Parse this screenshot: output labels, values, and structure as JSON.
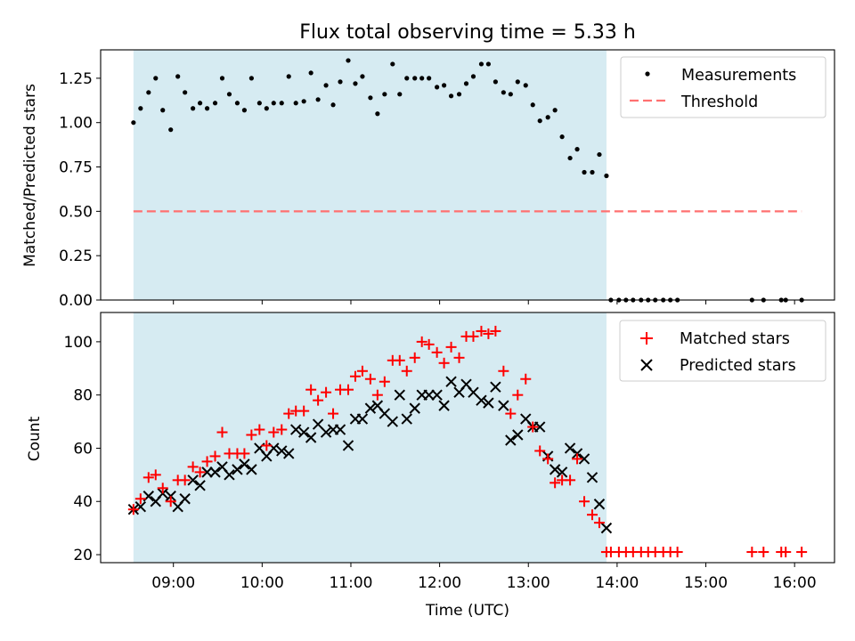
{
  "chart_data": [
    {
      "type": "scatter",
      "title": "Flux total observing time = 5.33 h",
      "xlabel": "",
      "ylabel": "Matched/Predicted stars",
      "ylim": [
        0,
        1.41
      ],
      "xlim": [
        8.18,
        16.45
      ],
      "yticks": [
        0,
        0.25,
        0.5,
        0.75,
        1.0,
        1.25
      ],
      "ytick_labels": [
        "0.00",
        "0.25",
        "0.50",
        "0.75",
        "1.00",
        "1.25"
      ],
      "observing_window": [
        8.55,
        13.88
      ],
      "threshold": {
        "value": 0.5,
        "x_range": [
          8.55,
          16.08
        ]
      },
      "legend": {
        "position": "top-right",
        "entries": [
          "Measurements",
          "Threshold"
        ]
      },
      "series": [
        {
          "name": "Measurements",
          "x": [
            8.55,
            8.63,
            8.72,
            8.8,
            8.88,
            8.97,
            9.05,
            9.13,
            9.22,
            9.3,
            9.38,
            9.47,
            9.55,
            9.63,
            9.72,
            9.8,
            9.88,
            9.97,
            10.05,
            10.13,
            10.22,
            10.3,
            10.38,
            10.47,
            10.55,
            10.63,
            10.72,
            10.8,
            10.88,
            10.97,
            11.05,
            11.13,
            11.22,
            11.3,
            11.38,
            11.47,
            11.55,
            11.63,
            11.72,
            11.8,
            11.88,
            11.97,
            12.05,
            12.13,
            12.22,
            12.3,
            12.38,
            12.47,
            12.55,
            12.63,
            12.72,
            12.8,
            12.88,
            12.97,
            13.05,
            13.13,
            13.22,
            13.3,
            13.38,
            13.47,
            13.55,
            13.63,
            13.72,
            13.8,
            13.88,
            13.93,
            14.02,
            14.1,
            14.18,
            14.27,
            14.35,
            14.43,
            14.52,
            14.6,
            14.68,
            15.52,
            15.65,
            15.85,
            15.9,
            16.08
          ],
          "values": [
            1.0,
            1.08,
            1.17,
            1.25,
            1.07,
            0.96,
            1.26,
            1.17,
            1.08,
            1.11,
            1.08,
            1.11,
            1.25,
            1.16,
            1.11,
            1.07,
            1.25,
            1.11,
            1.08,
            1.11,
            1.11,
            1.26,
            1.11,
            1.12,
            1.28,
            1.13,
            1.21,
            1.1,
            1.23,
            1.35,
            1.22,
            1.26,
            1.14,
            1.05,
            1.16,
            1.33,
            1.16,
            1.25,
            1.25,
            1.25,
            1.25,
            1.2,
            1.21,
            1.15,
            1.16,
            1.22,
            1.26,
            1.33,
            1.33,
            1.23,
            1.17,
            1.16,
            1.23,
            1.21,
            1.1,
            1.01,
            1.03,
            1.07,
            0.92,
            0.8,
            0.85,
            0.72,
            0.72,
            0.82,
            0.7,
            0,
            0,
            0,
            0,
            0,
            0,
            0,
            0,
            0,
            0,
            0,
            0,
            0,
            0,
            0
          ]
        }
      ]
    },
    {
      "type": "scatter",
      "title": "",
      "xlabel": "Time (UTC)",
      "ylabel": "Count",
      "ylim": [
        17,
        111
      ],
      "xlim": [
        8.18,
        16.45
      ],
      "yticks": [
        20,
        40,
        60,
        80,
        100
      ],
      "ytick_labels": [
        "20",
        "40",
        "60",
        "80",
        "100"
      ],
      "xticks": [
        9,
        10,
        11,
        12,
        13,
        14,
        15,
        16
      ],
      "xtick_labels": [
        "09:00",
        "10:00",
        "11:00",
        "12:00",
        "13:00",
        "14:00",
        "15:00",
        "16:00"
      ],
      "observing_window": [
        8.55,
        13.88
      ],
      "legend": {
        "position": "top-right",
        "entries": [
          "Matched stars",
          "Predicted stars"
        ]
      },
      "series": [
        {
          "name": "Matched stars",
          "x": [
            8.55,
            8.63,
            8.72,
            8.8,
            8.88,
            8.97,
            9.05,
            9.13,
            9.22,
            9.3,
            9.38,
            9.47,
            9.55,
            9.63,
            9.72,
            9.8,
            9.88,
            9.97,
            10.05,
            10.13,
            10.22,
            10.3,
            10.38,
            10.47,
            10.55,
            10.63,
            10.72,
            10.8,
            10.88,
            10.97,
            11.05,
            11.13,
            11.22,
            11.3,
            11.38,
            11.47,
            11.55,
            11.63,
            11.72,
            11.8,
            11.88,
            11.97,
            12.05,
            12.13,
            12.22,
            12.3,
            12.38,
            12.47,
            12.55,
            12.63,
            12.72,
            12.8,
            12.88,
            12.97,
            13.05,
            13.13,
            13.22,
            13.3,
            13.38,
            13.47,
            13.55,
            13.63,
            13.72,
            13.8,
            13.88,
            13.93,
            14.02,
            14.1,
            14.18,
            14.27,
            14.35,
            14.43,
            14.52,
            14.6,
            14.68,
            15.52,
            15.65,
            15.85,
            15.9,
            16.08
          ],
          "values": [
            37,
            41,
            49,
            50,
            45,
            40,
            48,
            48,
            53,
            51,
            55,
            57,
            66,
            58,
            58,
            58,
            65,
            67,
            61,
            66,
            67,
            73,
            74,
            74,
            82,
            78,
            81,
            73,
            82,
            82,
            87,
            89,
            86,
            80,
            85,
            93,
            93,
            89,
            94,
            100,
            99,
            96,
            92,
            98,
            94,
            102,
            102,
            104,
            103,
            104,
            89,
            73,
            80,
            86,
            68,
            59,
            56,
            47,
            48,
            48,
            56,
            40,
            35,
            32,
            21,
            21,
            21,
            21,
            21,
            21,
            21,
            21,
            21,
            21,
            21,
            21,
            21,
            21,
            21,
            21
          ]
        },
        {
          "name": "Predicted stars",
          "x": [
            8.55,
            8.63,
            8.72,
            8.8,
            8.88,
            8.97,
            9.05,
            9.13,
            9.22,
            9.3,
            9.38,
            9.47,
            9.55,
            9.63,
            9.72,
            9.8,
            9.88,
            9.97,
            10.05,
            10.13,
            10.22,
            10.3,
            10.38,
            10.47,
            10.55,
            10.63,
            10.72,
            10.8,
            10.88,
            10.97,
            11.05,
            11.13,
            11.22,
            11.3,
            11.38,
            11.47,
            11.55,
            11.63,
            11.72,
            11.8,
            11.88,
            11.97,
            12.05,
            12.13,
            12.22,
            12.3,
            12.38,
            12.47,
            12.55,
            12.63,
            12.72,
            12.8,
            12.88,
            12.97,
            13.05,
            13.13,
            13.22,
            13.3,
            13.38,
            13.47,
            13.55,
            13.63,
            13.72,
            13.8,
            13.88
          ],
          "values": [
            37,
            38,
            42,
            40,
            43,
            42,
            38,
            41,
            48,
            46,
            51,
            51,
            53,
            50,
            52,
            54,
            52,
            60,
            57,
            60,
            59,
            58,
            67,
            66,
            64,
            69,
            66,
            67,
            67,
            61,
            71,
            71,
            75,
            76,
            73,
            70,
            80,
            71,
            75,
            80,
            80,
            80,
            76,
            85,
            81,
            84,
            81,
            78,
            77,
            83,
            76,
            63,
            65,
            71,
            68,
            68,
            57,
            52,
            51,
            60,
            58,
            56,
            49,
            39,
            30
          ]
        }
      ]
    }
  ]
}
